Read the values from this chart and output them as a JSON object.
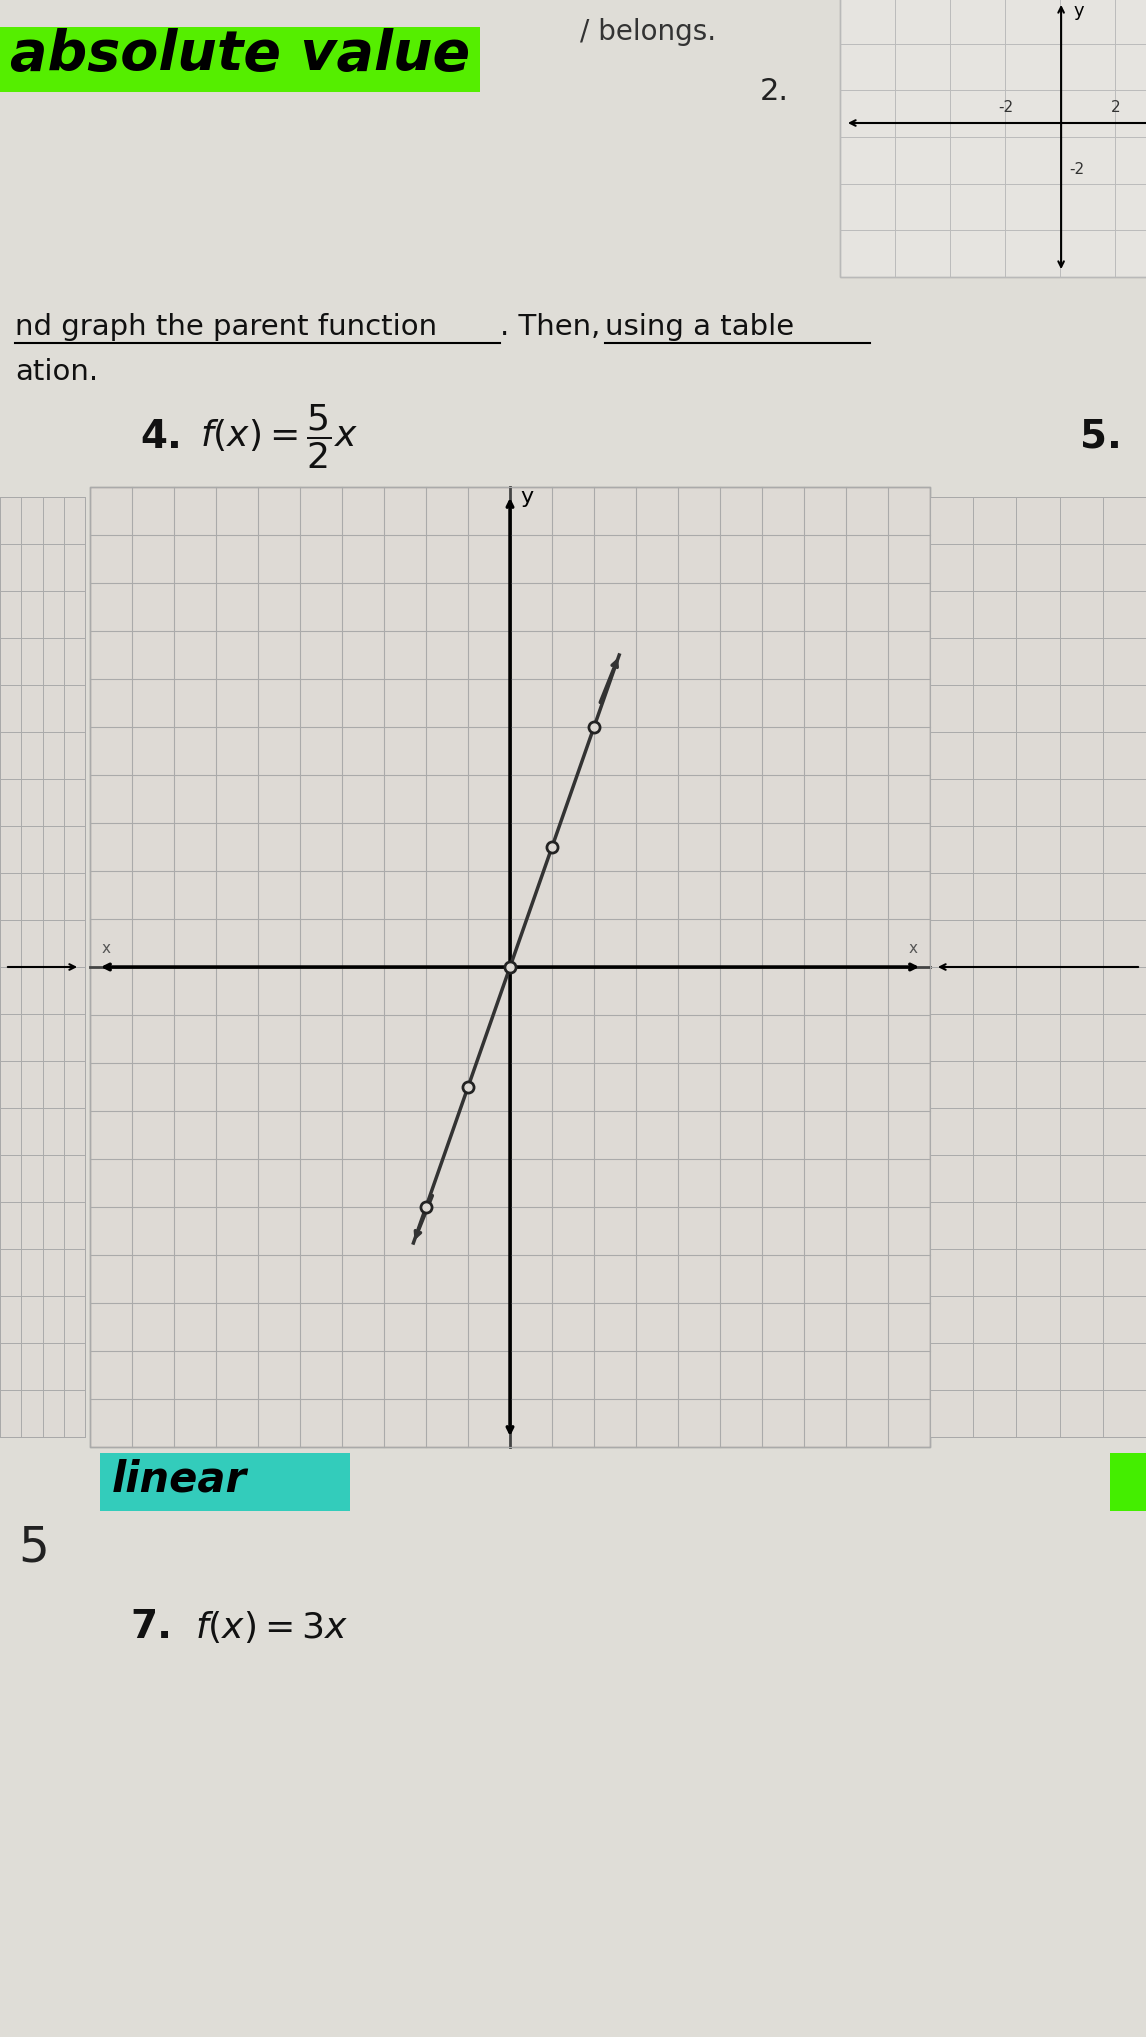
{
  "page_bg": "#d8d5d0",
  "paper_bg": "#e8e6e2",
  "title_text": "absolute value",
  "title_highlight": "#55ee00",
  "belongs_text": "/ belongs.",
  "number2": "2.",
  "instruction_text1": "nd graph the parent function",
  "instruction_text2": ". Then,",
  "instruction_text3": "using a table",
  "instruction_text4": "ation.",
  "problem4_label": "4.",
  "problem5_label": "5.",
  "problem7_label": "7.",
  "linear_text": "linear",
  "linear_highlight": "#33ccbb",
  "s_text": "5",
  "grid_color": "#aaaaaa",
  "axis_color": "#111111",
  "line_color": "#333333",
  "dot_color": "#444444",
  "line_slope": 2.5,
  "sg_grid_color": "#bbbbbb",
  "main_grid_cols": 20,
  "main_grid_rows": 20
}
